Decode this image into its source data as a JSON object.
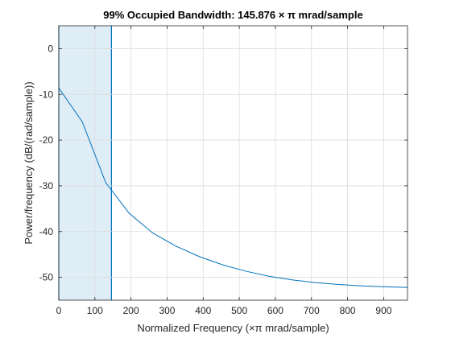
{
  "chart_data": {
    "type": "line",
    "title": "99% Occupied Bandwidth: 145.876 × π mrad/sample",
    "xlabel": "Normalized Frequency  (×π mrad/sample)",
    "ylabel": "Power/frequency (dB/(rad/sample))",
    "xlim": [
      0,
      966
    ],
    "ylim": [
      -55,
      5
    ],
    "x_ticks": [
      0,
      100,
      200,
      300,
      400,
      500,
      600,
      700,
      800,
      900
    ],
    "y_ticks": [
      0,
      -10,
      -20,
      -30,
      -40,
      -50
    ],
    "grid": true,
    "occupied_bandwidth": [
      0,
      145.876
    ],
    "series": [
      {
        "color": "#0072bd",
        "x": [
          0,
          65,
          130,
          195,
          260,
          325,
          390,
          455,
          520,
          585,
          650,
          715,
          780,
          845,
          910,
          966
        ],
        "y": [
          -8.6,
          -16,
          -29.3,
          -36,
          -40.3,
          -43.2,
          -45.5,
          -47.3,
          -48.7,
          -49.8,
          -50.6,
          -51.2,
          -51.6,
          -51.9,
          -52.1,
          -52.2
        ]
      }
    ],
    "band_fill": "#dfedf7",
    "band_edge": "#0072bd"
  }
}
